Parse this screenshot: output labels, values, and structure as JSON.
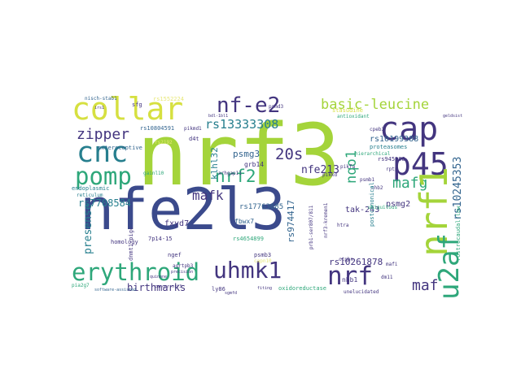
{
  "colors": {
    "purple": "#43357f",
    "indigo": "#3b4a8c",
    "blue": "#32648e",
    "teal": "#277f8e",
    "green": "#2ea77a",
    "lime": "#a4d43a",
    "yellow": "#d6e040",
    "pale": "#e8e87a"
  },
  "cloud": {
    "words": [
      {
        "text": "nfe2l3"
      },
      {
        "text": "nrf3"
      },
      {
        "text": "collar"
      },
      {
        "text": "cnc"
      },
      {
        "text": "pomp"
      },
      {
        "text": "nf-e2"
      },
      {
        "text": "cap"
      },
      {
        "text": "p45"
      },
      {
        "text": "basic-leucine"
      },
      {
        "text": "rs13333308"
      },
      {
        "text": "zipper"
      },
      {
        "text": "nrf2"
      },
      {
        "text": "20s"
      },
      {
        "text": "mafg"
      },
      {
        "text": "mafk"
      },
      {
        "text": "psmg3"
      },
      {
        "text": "klhl32"
      },
      {
        "text": "nqo1"
      },
      {
        "text": "nfe213"
      },
      {
        "text": "rs10245353"
      },
      {
        "text": "nrf1"
      },
      {
        "text": "rs7708584"
      },
      {
        "text": "rs17763685"
      },
      {
        "text": "rs974417"
      },
      {
        "text": "u2af"
      },
      {
        "text": "erythroid"
      },
      {
        "text": "uhmk1"
      },
      {
        "text": "nrf"
      },
      {
        "text": "maf"
      },
      {
        "text": "birthmarks"
      },
      {
        "text": "presense"
      },
      {
        "text": "fxyd7"
      },
      {
        "text": "fbwx7"
      },
      {
        "text": "rs4654899"
      },
      {
        "text": "rs10261878"
      },
      {
        "text": "psmg2"
      },
      {
        "text": "tak-243"
      },
      {
        "text": "rs10199388"
      },
      {
        "text": "rs10804591"
      },
      {
        "text": "nisch-stab1"
      },
      {
        "text": "endoplasmic"
      },
      {
        "text": "reticulum"
      },
      {
        "text": "exteroceptive"
      },
      {
        "text": "homology"
      },
      {
        "text": "gainl10"
      },
      {
        "text": "proteasomes"
      },
      {
        "text": "rs945508"
      },
      {
        "text": "cpeb3"
      },
      {
        "text": "psmd3"
      },
      {
        "text": "pikmd1"
      },
      {
        "text": "rs1552224"
      },
      {
        "text": "d4t"
      },
      {
        "text": "sfg"
      },
      {
        "text": "grb14"
      },
      {
        "text": "oxidoreductase"
      },
      {
        "text": "unelucidated"
      },
      {
        "text": "nhb1"
      },
      {
        "text": "nhb2"
      },
      {
        "text": "ngef"
      },
      {
        "text": "7p14-15"
      },
      {
        "text": "ly86"
      },
      {
        "text": "psmb3"
      },
      {
        "text": "htra"
      },
      {
        "text": "ctpbn"
      },
      {
        "text": "pia2g7"
      },
      {
        "text": "rptp"
      },
      {
        "text": "postcanonical"
      },
      {
        "text": "dm11"
      },
      {
        "text": "mafi"
      },
      {
        "text": "pikkd"
      },
      {
        "text": "pikfa"
      },
      {
        "text": "stasudine"
      },
      {
        "text": "antioxidant"
      },
      {
        "text": "arhgap11"
      },
      {
        "text": "prb1-ser807/811"
      },
      {
        "text": "nrf3-kremen1"
      },
      {
        "text": "rostrocaudal-low"
      },
      {
        "text": "hierarchical"
      },
      {
        "text": "ubiquitous"
      },
      {
        "text": "geldsist"
      },
      {
        "text": "dnmt1-pigc"
      },
      {
        "text": "agrtpb3"
      },
      {
        "text": "rs2192"
      },
      {
        "text": "capn10"
      },
      {
        "text": "software-assisted"
      },
      {
        "text": "quinone"
      },
      {
        "text": "precision"
      },
      {
        "text": "irs1"
      },
      {
        "text": "fiting"
      },
      {
        "text": "sgmfd"
      },
      {
        "text": "bdl-1bl1"
      },
      {
        "text": "cancer-nrf3"
      },
      {
        "text": "psmb1"
      }
    ]
  }
}
